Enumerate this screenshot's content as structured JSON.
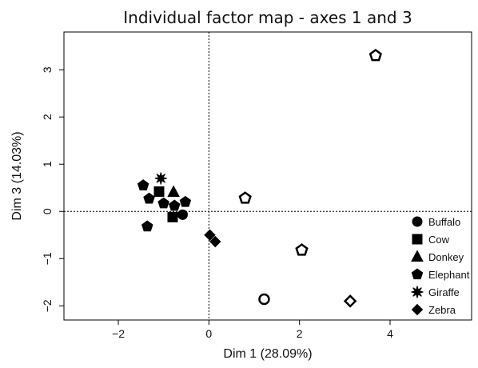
{
  "chart_data": {
    "type": "scatter",
    "title": "Individual factor map - axes 1 and 3",
    "xlabel": "Dim 1 (28.09%)",
    "ylabel": "Dim 3 (14.03%)",
    "xlim": [
      -3.2,
      5.8
    ],
    "ylim": [
      -2.3,
      3.8
    ],
    "x_ticks": [
      "−2",
      "0",
      "2",
      "4"
    ],
    "x_tick_values": [
      -2,
      0,
      2,
      4
    ],
    "y_ticks": [
      "−2",
      "−1",
      "0",
      "1",
      "2",
      "3"
    ],
    "y_tick_values": [
      -2,
      -1,
      0,
      1,
      2,
      3
    ],
    "reference_lines": {
      "x": 0,
      "y": 0,
      "style": "dotted"
    },
    "grid": false,
    "legend_position": "right",
    "series": [
      {
        "name": "Buffalo",
        "marker": "circle",
        "points": [
          {
            "x": -0.58,
            "y": -0.07,
            "filled": true
          },
          {
            "x": 1.22,
            "y": -1.86,
            "filled": false
          }
        ]
      },
      {
        "name": "Cow",
        "marker": "square",
        "points": [
          {
            "x": -1.1,
            "y": 0.42,
            "filled": true
          },
          {
            "x": -0.8,
            "y": -0.12,
            "filled": true
          }
        ]
      },
      {
        "name": "Donkey",
        "marker": "triangle",
        "points": [
          {
            "x": -0.78,
            "y": 0.41,
            "filled": true
          }
        ]
      },
      {
        "name": "Elephant",
        "marker": "pentagon",
        "points": [
          {
            "x": -1.45,
            "y": 0.55,
            "filled": true
          },
          {
            "x": -1.32,
            "y": 0.27,
            "filled": true
          },
          {
            "x": -1.0,
            "y": 0.17,
            "filled": true
          },
          {
            "x": -0.76,
            "y": 0.12,
            "filled": true
          },
          {
            "x": -0.52,
            "y": 0.2,
            "filled": true
          },
          {
            "x": -1.36,
            "y": -0.32,
            "filled": true
          },
          {
            "x": 0.8,
            "y": 0.28,
            "filled": false
          },
          {
            "x": 2.05,
            "y": -0.82,
            "filled": false
          },
          {
            "x": 3.68,
            "y": 3.3,
            "filled": false
          }
        ]
      },
      {
        "name": "Giraffe",
        "marker": "star",
        "points": [
          {
            "x": -1.06,
            "y": 0.7,
            "filled": true
          }
        ]
      },
      {
        "name": "Zebra",
        "marker": "diamond",
        "points": [
          {
            "x": 0.02,
            "y": -0.5,
            "filled": true
          },
          {
            "x": 0.14,
            "y": -0.64,
            "filled": true
          },
          {
            "x": 3.12,
            "y": -1.9,
            "filled": false
          }
        ]
      }
    ]
  }
}
